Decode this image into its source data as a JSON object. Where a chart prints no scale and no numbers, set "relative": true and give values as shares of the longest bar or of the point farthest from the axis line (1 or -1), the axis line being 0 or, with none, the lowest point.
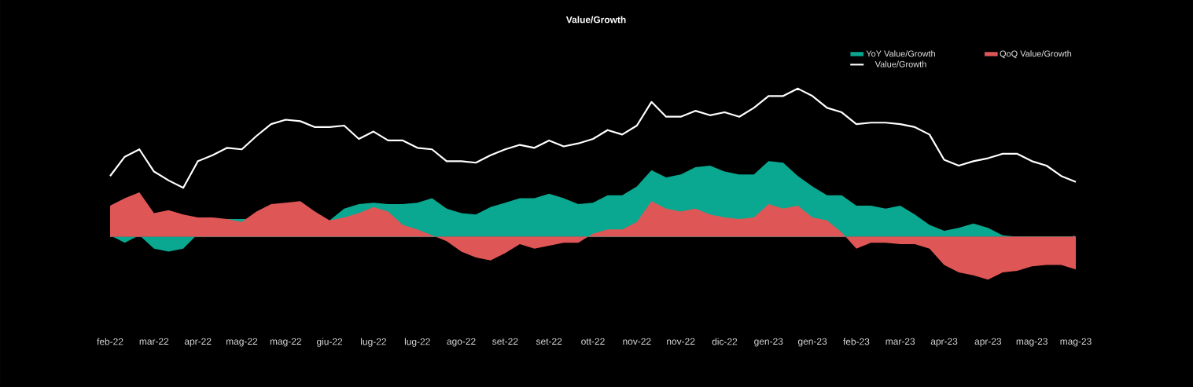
{
  "chart_data": {
    "type": "line",
    "title": "Value/Growth",
    "relative": true,
    "legend": "top right",
    "categories": [
      "feb-22",
      null,
      null,
      "mar-22",
      null,
      null,
      "apr-22",
      null,
      null,
      "mag-22",
      null,
      null,
      "mag-22",
      null,
      null,
      "giu-22",
      null,
      null,
      "lug-22",
      null,
      null,
      "lug-22",
      null,
      null,
      "ago-22",
      null,
      null,
      "set-22",
      null,
      null,
      "set-22",
      null,
      null,
      "ott-22",
      null,
      null,
      "nov-22",
      null,
      null,
      "nov-22",
      null,
      null,
      "dic-22",
      null,
      null,
      "gen-23",
      null,
      null,
      "gen-23",
      null,
      null,
      "feb-23",
      null,
      null,
      "mar-23",
      null,
      null,
      "apr-23",
      null,
      null,
      "apr-23",
      null,
      null,
      "mag-23",
      null,
      null,
      "mag-23"
    ],
    "series": [
      {
        "name": "YoY Value/Growth",
        "type": "area",
        "color": "#0aa890",
        "values": [
          0.01,
          -0.04,
          0.01,
          -0.08,
          -0.1,
          -0.08,
          null,
          0.12,
          0.12,
          0.12,
          null,
          null,
          null,
          null,
          null,
          0.11,
          0.19,
          0.22,
          0.23,
          0.22,
          0.22,
          0.23,
          0.26,
          0.19,
          0.16,
          0.15,
          0.2,
          0.23,
          0.26,
          0.26,
          0.29,
          0.26,
          0.22,
          0.23,
          0.28,
          0.28,
          0.34,
          0.45,
          0.4,
          0.42,
          0.47,
          0.48,
          0.44,
          0.42,
          0.42,
          0.51,
          0.5,
          0.41,
          0.34,
          0.28,
          0.28,
          0.21,
          0.21,
          0.19,
          0.21,
          0.15,
          0.08,
          0.04,
          0.06,
          0.09,
          0.06,
          0.01,
          0,
          null,
          null,
          null,
          -0.2
        ]
      },
      {
        "name": "QoQ Value/Growth",
        "type": "area",
        "color": "#de5656",
        "values": [
          0.21,
          0.26,
          0.3,
          0.16,
          0.18,
          0.15,
          0.13,
          0.13,
          0.12,
          0.1,
          0.17,
          0.22,
          0.23,
          0.24,
          0.17,
          0.11,
          0.13,
          0.16,
          0.2,
          0.17,
          0.08,
          0.05,
          0.01,
          -0.03,
          -0.1,
          -0.14,
          -0.16,
          -0.11,
          -0.05,
          -0.08,
          -0.06,
          -0.04,
          -0.04,
          0.02,
          0.05,
          0.05,
          0.1,
          0.24,
          0.19,
          0.17,
          0.19,
          0.15,
          0.13,
          0.12,
          0.13,
          0.22,
          0.19,
          0.21,
          0.13,
          0.11,
          0.03,
          -0.08,
          -0.04,
          -0.04,
          -0.05,
          -0.05,
          -0.08,
          -0.19,
          -0.24,
          -0.26,
          -0.29,
          -0.24,
          -0.23,
          -0.2,
          -0.19,
          -0.19,
          -0.22
        ]
      },
      {
        "name": "Value/Growth",
        "color": "#ffffff",
        "values": [
          0.41,
          0.54,
          0.59,
          0.44,
          0.38,
          0.33,
          0.51,
          0.55,
          0.6,
          0.59,
          0.68,
          0.76,
          0.79,
          0.78,
          0.74,
          0.74,
          0.75,
          0.66,
          0.71,
          0.65,
          0.65,
          0.6,
          0.59,
          0.51,
          0.51,
          0.5,
          0.55,
          0.59,
          0.62,
          0.6,
          0.65,
          0.61,
          0.63,
          0.66,
          0.72,
          0.69,
          0.75,
          0.91,
          0.81,
          0.81,
          0.85,
          0.82,
          0.84,
          0.81,
          0.87,
          0.95,
          0.95,
          1,
          0.95,
          0.87,
          0.84,
          0.76,
          0.77,
          0.77,
          0.76,
          0.74,
          0.69,
          0.52,
          0.48,
          0.51,
          0.53,
          0.56,
          0.56,
          0.51,
          0.48,
          0.41,
          0.37
        ]
      }
    ]
  }
}
